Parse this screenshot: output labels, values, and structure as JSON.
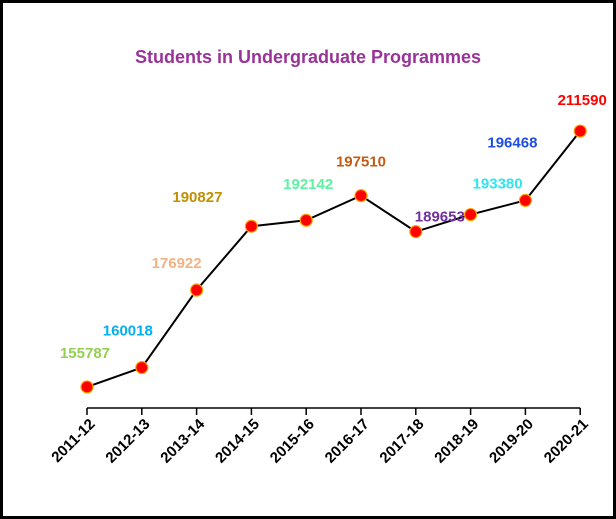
{
  "chart_data": {
    "type": "line",
    "title": "Students in Undergraduate Programmes",
    "categories": [
      "2011-12",
      "2012-13",
      "2013-14",
      "2014-15",
      "2015-16",
      "2016-17",
      "2017-18",
      "2018-19",
      "2019-20",
      "2020-21"
    ],
    "values": [
      155787,
      160018,
      176922,
      190827,
      192142,
      197510,
      189653,
      193380,
      196468,
      211590
    ],
    "color": "#000000",
    "marker_color": "#ff0000",
    "label_colors": [
      "#92d050",
      "#00b0f0",
      "#f4b183",
      "#bf9000",
      "#5cf2a0",
      "#c55a11",
      "#7030a0",
      "#2ee6f0",
      "#1f4fe0",
      "#ff0000"
    ],
    "ylim": [
      150000,
      215000
    ]
  }
}
